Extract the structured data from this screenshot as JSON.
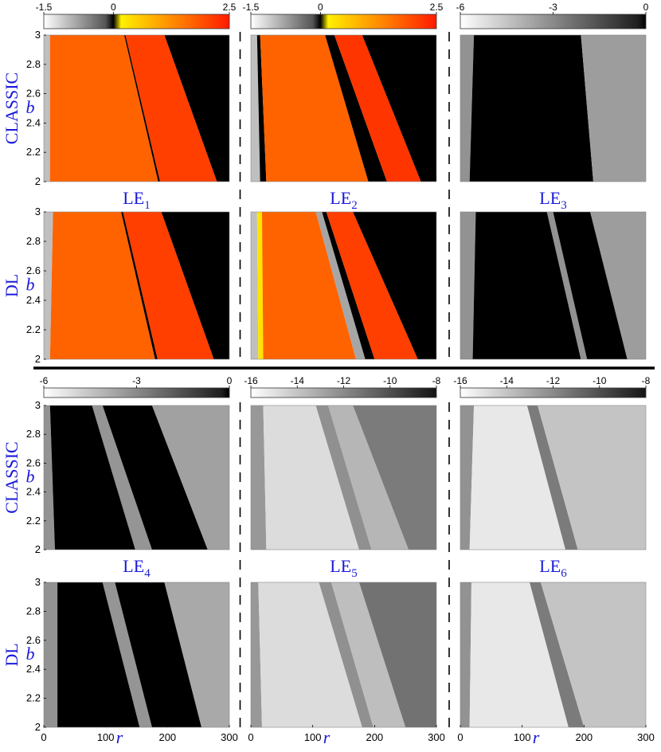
{
  "figure": {
    "row_labels": [
      "CLASSIC",
      "DL",
      "CLASSIC",
      "DL"
    ],
    "y_symbol": "b",
    "x_symbol": "r",
    "divider": "solid"
  },
  "colors": {
    "label_blue": "#1a1ad9",
    "hot_low": "#ffff00",
    "hot_high": "#ff1a00",
    "gray_low": "#ffffff",
    "gray_high": "#000000"
  },
  "chart_data": [
    {
      "type": "heatmap",
      "row": "CLASSIC",
      "col": 1,
      "title": "LE",
      "subscript": "1",
      "title_position": "below",
      "xlim": [
        0,
        300
      ],
      "ylim": [
        2,
        3
      ],
      "y_ticks": [
        "2",
        "2.2",
        "2.4",
        "2.6",
        "2.8",
        "3"
      ],
      "x_ticks": [],
      "colormap": "gray-hot",
      "colorbar": {
        "ticks": [
          "-1.5",
          "0",
          "2.5"
        ],
        "range": [
          -1.5,
          2.5
        ]
      },
      "regions": [
        {
          "r_at_b2": [
            0,
            10
          ],
          "r_at_b3": [
            0,
            10
          ],
          "value": -1
        },
        {
          "r_at_b2": [
            10,
            185
          ],
          "r_at_b3": [
            10,
            130
          ],
          "value": 1.7
        },
        {
          "r_at_b2": [
            185,
            188
          ],
          "r_at_b3": [
            130,
            132
          ],
          "value": 0
        },
        {
          "r_at_b2": [
            188,
            280
          ],
          "r_at_b3": [
            132,
            195
          ],
          "value": 2.1
        },
        {
          "r_at_b2": [
            280,
            300
          ],
          "r_at_b3": [
            195,
            300
          ],
          "value": 0
        }
      ]
    },
    {
      "type": "heatmap",
      "row": "CLASSIC",
      "col": 2,
      "title": "LE",
      "subscript": "2",
      "title_position": "below",
      "xlim": [
        0,
        300
      ],
      "ylim": [
        2,
        3
      ],
      "y_ticks": [],
      "x_ticks": [],
      "colormap": "gray-hot",
      "colorbar": {
        "ticks": [
          "-1.5",
          "0",
          "2.5"
        ],
        "range": [
          -1.5,
          2.5
        ]
      },
      "regions": [
        {
          "r_at_b2": [
            0,
            15
          ],
          "r_at_b3": [
            0,
            10
          ],
          "value": -1
        },
        {
          "r_at_b2": [
            15,
            25
          ],
          "r_at_b3": [
            10,
            15
          ],
          "value": 0
        },
        {
          "r_at_b2": [
            25,
            190
          ],
          "r_at_b3": [
            15,
            120
          ],
          "value": 1.7
        },
        {
          "r_at_b2": [
            190,
            220
          ],
          "r_at_b3": [
            120,
            135
          ],
          "value": 0
        },
        {
          "r_at_b2": [
            220,
            275
          ],
          "r_at_b3": [
            135,
            180
          ],
          "value": 2.2
        },
        {
          "r_at_b2": [
            275,
            300
          ],
          "r_at_b3": [
            180,
            300
          ],
          "value": 0
        }
      ]
    },
    {
      "type": "heatmap",
      "row": "CLASSIC",
      "col": 3,
      "title": "LE",
      "subscript": "3",
      "title_position": "below",
      "xlim": [
        0,
        300
      ],
      "ylim": [
        2,
        3
      ],
      "y_ticks": [],
      "x_ticks": [],
      "colormap": "gray",
      "colorbar": {
        "ticks": [
          "-6",
          "-3",
          "0"
        ],
        "range": [
          -6,
          0
        ]
      },
      "regions": [
        {
          "r_at_b2": [
            0,
            15
          ],
          "r_at_b3": [
            0,
            22
          ],
          "value": -3.2
        },
        {
          "r_at_b2": [
            15,
            215
          ],
          "r_at_b3": [
            22,
            195
          ],
          "value": 0
        },
        {
          "r_at_b2": [
            215,
            300
          ],
          "r_at_b3": [
            195,
            300
          ],
          "value": -3.5
        }
      ]
    },
    {
      "type": "heatmap",
      "row": "DL",
      "col": 1,
      "title": "",
      "title_position": "none",
      "xlim": [
        0,
        300
      ],
      "ylim": [
        2,
        3
      ],
      "y_ticks": [
        "2",
        "2.2",
        "2.4",
        "2.6",
        "2.8",
        "3"
      ],
      "x_ticks": [],
      "colormap": "gray-hot",
      "colorbar": {
        "ticks": [
          "-1.5",
          "0",
          "2.5"
        ],
        "range": [
          -1.5,
          2.5
        ]
      },
      "regions": [
        {
          "r_at_b2": [
            0,
            10
          ],
          "r_at_b3": [
            0,
            15
          ],
          "value": -1
        },
        {
          "r_at_b2": [
            10,
            180
          ],
          "r_at_b3": [
            15,
            125
          ],
          "value": 1.7
        },
        {
          "r_at_b2": [
            180,
            184
          ],
          "r_at_b3": [
            125,
            128
          ],
          "value": 0
        },
        {
          "r_at_b2": [
            184,
            275
          ],
          "r_at_b3": [
            128,
            190
          ],
          "value": 2.1
        },
        {
          "r_at_b2": [
            275,
            300
          ],
          "r_at_b3": [
            190,
            300
          ],
          "value": 0
        }
      ]
    },
    {
      "type": "heatmap",
      "row": "DL",
      "col": 2,
      "title": "",
      "title_position": "none",
      "xlim": [
        0,
        300
      ],
      "ylim": [
        2,
        3
      ],
      "y_ticks": [],
      "x_ticks": [],
      "colormap": "gray-hot",
      "colorbar": {
        "ticks": [
          "-1.5",
          "0",
          "2.5"
        ],
        "range": [
          -1.5,
          2.5
        ]
      },
      "regions": [
        {
          "r_at_b2": [
            0,
            12
          ],
          "r_at_b3": [
            0,
            10
          ],
          "value": -1
        },
        {
          "r_at_b2": [
            12,
            20
          ],
          "r_at_b3": [
            10,
            18
          ],
          "value": 0.3
        },
        {
          "r_at_b2": [
            20,
            170
          ],
          "r_at_b3": [
            18,
            105
          ],
          "value": 1.7
        },
        {
          "r_at_b2": [
            170,
            185
          ],
          "r_at_b3": [
            105,
            115
          ],
          "value": -0.8
        },
        {
          "r_at_b2": [
            185,
            200
          ],
          "r_at_b3": [
            115,
            122
          ],
          "value": 0
        },
        {
          "r_at_b2": [
            200,
            270
          ],
          "r_at_b3": [
            122,
            165
          ],
          "value": 2.1
        },
        {
          "r_at_b2": [
            270,
            300
          ],
          "r_at_b3": [
            165,
            300
          ],
          "value": 0
        }
      ]
    },
    {
      "type": "heatmap",
      "row": "DL",
      "col": 3,
      "title": "",
      "title_position": "none",
      "xlim": [
        0,
        300
      ],
      "ylim": [
        2,
        3
      ],
      "y_ticks": [],
      "x_ticks": [],
      "colormap": "gray",
      "colorbar": {
        "ticks": [
          "-6",
          "-3",
          "0"
        ],
        "range": [
          -6,
          0
        ]
      },
      "regions": [
        {
          "r_at_b2": [
            0,
            20
          ],
          "r_at_b3": [
            0,
            25
          ],
          "value": -3.2
        },
        {
          "r_at_b2": [
            20,
            195
          ],
          "r_at_b3": [
            25,
            140
          ],
          "value": 0
        },
        {
          "r_at_b2": [
            195,
            205
          ],
          "r_at_b3": [
            140,
            150
          ],
          "value": -3.2
        },
        {
          "r_at_b2": [
            205,
            270
          ],
          "r_at_b3": [
            150,
            210
          ],
          "value": 0
        },
        {
          "r_at_b2": [
            270,
            300
          ],
          "r_at_b3": [
            210,
            300
          ],
          "value": -3.5
        }
      ]
    },
    {
      "type": "heatmap",
      "row": "CLASSIC",
      "col": 1,
      "title": "LE",
      "subscript": "4",
      "title_position": "below",
      "xlim": [
        0,
        300
      ],
      "ylim": [
        2,
        3
      ],
      "y_ticks": [
        "2",
        "2.2",
        "2.4",
        "2.6",
        "2.8",
        "3"
      ],
      "x_ticks": [],
      "colormap": "gray",
      "colorbar": {
        "ticks": [
          "-6",
          "-3",
          "0"
        ],
        "range": [
          -6,
          0
        ]
      },
      "regions": [
        {
          "r_at_b2": [
            0,
            18
          ],
          "r_at_b3": [
            0,
            10
          ],
          "value": -3.2
        },
        {
          "r_at_b2": [
            18,
            148
          ],
          "r_at_b3": [
            10,
            78
          ],
          "value": 0
        },
        {
          "r_at_b2": [
            148,
            175
          ],
          "r_at_b3": [
            78,
            95
          ],
          "value": -3.3
        },
        {
          "r_at_b2": [
            175,
            265
          ],
          "r_at_b3": [
            95,
            175
          ],
          "value": 0
        },
        {
          "r_at_b2": [
            265,
            300
          ],
          "r_at_b3": [
            175,
            300
          ],
          "value": -3.6
        }
      ]
    },
    {
      "type": "heatmap",
      "row": "CLASSIC",
      "col": 2,
      "title": "LE",
      "subscript": "5",
      "title_position": "below",
      "xlim": [
        0,
        300
      ],
      "ylim": [
        2,
        3
      ],
      "y_ticks": [],
      "x_ticks": [],
      "colormap": "gray",
      "colorbar": {
        "ticks": [
          "-16",
          "-14",
          "-12",
          "-10",
          "-8"
        ],
        "range": [
          -16,
          -8
        ]
      },
      "regions": [
        {
          "r_at_b2": [
            0,
            25
          ],
          "r_at_b3": [
            0,
            20
          ],
          "value": -12.5
        },
        {
          "r_at_b2": [
            25,
            175
          ],
          "r_at_b3": [
            20,
            105
          ],
          "value": -14.8
        },
        {
          "r_at_b2": [
            175,
            195
          ],
          "r_at_b3": [
            105,
            125
          ],
          "value": -12.2
        },
        {
          "r_at_b2": [
            195,
            255
          ],
          "r_at_b3": [
            125,
            165
          ],
          "value": -13.5
        },
        {
          "r_at_b2": [
            255,
            300
          ],
          "r_at_b3": [
            165,
            300
          ],
          "value": -11.5
        }
      ]
    },
    {
      "type": "heatmap",
      "row": "CLASSIC",
      "col": 3,
      "title": "LE",
      "subscript": "6",
      "title_position": "below",
      "xlim": [
        0,
        300
      ],
      "ylim": [
        2,
        3
      ],
      "y_ticks": [],
      "x_ticks": [],
      "colormap": "gray",
      "colorbar": {
        "ticks": [
          "-16",
          "-14",
          "-12",
          "-10",
          "-8"
        ],
        "range": [
          -16,
          -8
        ]
      },
      "regions": [
        {
          "r_at_b2": [
            0,
            15
          ],
          "r_at_b3": [
            0,
            22
          ],
          "value": -12.3
        },
        {
          "r_at_b2": [
            15,
            170
          ],
          "r_at_b3": [
            22,
            108
          ],
          "value": -15.2
        },
        {
          "r_at_b2": [
            170,
            190
          ],
          "r_at_b3": [
            108,
            125
          ],
          "value": -11.5
        },
        {
          "r_at_b2": [
            190,
            300
          ],
          "r_at_b3": [
            125,
            300
          ],
          "value": -14.0
        }
      ]
    },
    {
      "type": "heatmap",
      "row": "DL",
      "col": 1,
      "title": "",
      "title_position": "none",
      "xlim": [
        0,
        300
      ],
      "ylim": [
        2,
        3
      ],
      "y_ticks": [
        "2",
        "2.2",
        "2.4",
        "2.6",
        "2.8",
        "3"
      ],
      "x_ticks": [
        "0",
        "100",
        "200",
        "300"
      ],
      "colormap": "gray",
      "colorbar": {
        "ticks": [
          "-6",
          "-3",
          "0"
        ],
        "range": [
          -6,
          0
        ]
      },
      "regions": [
        {
          "r_at_b2": [
            0,
            22
          ],
          "r_at_b3": [
            0,
            22
          ],
          "value": -3.2
        },
        {
          "r_at_b2": [
            22,
            155
          ],
          "r_at_b3": [
            22,
            95
          ],
          "value": 0
        },
        {
          "r_at_b2": [
            155,
            175
          ],
          "r_at_b3": [
            95,
            115
          ],
          "value": -3.3
        },
        {
          "r_at_b2": [
            175,
            255
          ],
          "r_at_b3": [
            115,
            195
          ],
          "value": 0
        },
        {
          "r_at_b2": [
            255,
            300
          ],
          "r_at_b3": [
            195,
            300
          ],
          "value": -3.8
        }
      ]
    },
    {
      "type": "heatmap",
      "row": "DL",
      "col": 2,
      "title": "",
      "title_position": "none",
      "xlim": [
        0,
        300
      ],
      "ylim": [
        2,
        3
      ],
      "y_ticks": [],
      "x_ticks": [
        "0",
        "100",
        "200",
        "300"
      ],
      "colormap": "gray",
      "colorbar": {
        "ticks": [
          "-16",
          "-14",
          "-12",
          "-10",
          "-8"
        ],
        "range": [
          -16,
          -8
        ]
      },
      "regions": [
        {
          "r_at_b2": [
            0,
            18
          ],
          "r_at_b3": [
            0,
            12
          ],
          "value": -12.5
        },
        {
          "r_at_b2": [
            18,
            180
          ],
          "r_at_b3": [
            12,
            110
          ],
          "value": -14.8
        },
        {
          "r_at_b2": [
            180,
            198
          ],
          "r_at_b3": [
            110,
            130
          ],
          "value": -12.2
        },
        {
          "r_at_b2": [
            198,
            250
          ],
          "r_at_b3": [
            130,
            175
          ],
          "value": -13.8
        },
        {
          "r_at_b2": [
            250,
            300
          ],
          "r_at_b3": [
            175,
            300
          ],
          "value": -11.2
        }
      ]
    },
    {
      "type": "heatmap",
      "row": "DL",
      "col": 3,
      "title": "",
      "title_position": "none",
      "xlim": [
        0,
        300
      ],
      "ylim": [
        2,
        3
      ],
      "y_ticks": [],
      "x_ticks": [
        "0",
        "100",
        "200",
        "300"
      ],
      "colormap": "gray",
      "colorbar": {
        "ticks": [
          "-16",
          "-14",
          "-12",
          "-10",
          "-8"
        ],
        "range": [
          -16,
          -8
        ]
      },
      "regions": [
        {
          "r_at_b2": [
            0,
            15
          ],
          "r_at_b3": [
            0,
            18
          ],
          "value": -12.3
        },
        {
          "r_at_b2": [
            15,
            175
          ],
          "r_at_b3": [
            18,
            112
          ],
          "value": -15.2
        },
        {
          "r_at_b2": [
            175,
            200
          ],
          "r_at_b3": [
            112,
            130
          ],
          "value": -11.5
        },
        {
          "r_at_b2": [
            200,
            300
          ],
          "r_at_b3": [
            130,
            300
          ],
          "value": -14.0
        }
      ]
    }
  ]
}
